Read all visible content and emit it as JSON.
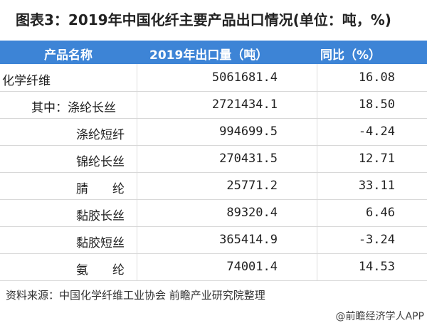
{
  "title": "图表3：2019年中国化纤主要产品出口情况(单位：吨，%)",
  "table": {
    "headers": [
      "产品名称",
      "2019年出口量（吨）",
      "同比（%）"
    ],
    "rows": [
      {
        "name": "化学纤维",
        "volume": "5061681.4",
        "yoy": "16.08"
      },
      {
        "name": "其中：涤纶长丝",
        "volume": "2721434.1",
        "yoy": "18.50"
      },
      {
        "name": "涤纶短纤",
        "volume": "994699.5",
        "yoy": "-4.24"
      },
      {
        "name": "锦纶长丝",
        "volume": "270431.5",
        "yoy": "12.71"
      },
      {
        "name": "腈　　纶",
        "volume": "25771.2",
        "yoy": "33.11"
      },
      {
        "name": "黏胶长丝",
        "volume": "89320.4",
        "yoy": "6.46"
      },
      {
        "name": "黏胶短丝",
        "volume": "365414.9",
        "yoy": "-3.24"
      },
      {
        "name": "氨　　纶",
        "volume": "74001.4",
        "yoy": "14.53"
      }
    ]
  },
  "source": "资料来源：中国化学纤维工业协会 前瞻产业研究院整理",
  "credit": "@前瞻经济学人APP",
  "colors": {
    "header_bg": "#3d84d6"
  }
}
